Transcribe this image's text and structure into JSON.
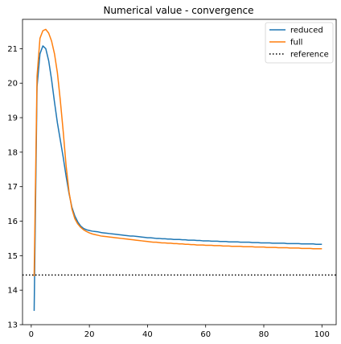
{
  "chart_data": {
    "type": "line",
    "title": "Numerical value - convergence",
    "xlabel": "",
    "ylabel": "",
    "xlim": [
      -3,
      104.9
    ],
    "ylim": [
      13,
      21.85
    ],
    "x_ticks": [
      0,
      20,
      40,
      60,
      80,
      100
    ],
    "y_ticks": [
      13,
      14,
      15,
      16,
      17,
      18,
      19,
      20,
      21
    ],
    "grid": false,
    "legend_position": "top-right",
    "x": [
      1,
      2,
      3,
      4,
      5,
      6,
      7,
      8,
      9,
      10,
      11,
      12,
      13,
      14,
      15,
      16,
      17,
      18,
      19,
      20,
      21,
      22,
      23,
      24,
      25,
      26,
      27,
      28,
      29,
      30,
      31,
      32,
      33,
      34,
      35,
      36,
      37,
      38,
      39,
      40,
      41,
      42,
      43,
      44,
      45,
      46,
      47,
      48,
      49,
      50,
      51,
      52,
      53,
      54,
      55,
      56,
      57,
      58,
      59,
      60,
      61,
      62,
      63,
      64,
      65,
      66,
      67,
      68,
      69,
      70,
      71,
      72,
      73,
      74,
      75,
      76,
      77,
      78,
      79,
      80,
      81,
      82,
      83,
      84,
      85,
      86,
      87,
      88,
      89,
      90,
      91,
      92,
      93,
      94,
      95,
      96,
      97,
      98,
      99,
      100
    ],
    "series": [
      {
        "name": "reduced",
        "color": "#1f77b4",
        "style": "solid",
        "values": [
          13.4,
          19.9,
          20.85,
          21.08,
          21.0,
          20.65,
          20.1,
          19.45,
          18.85,
          18.35,
          17.85,
          17.3,
          16.8,
          16.4,
          16.15,
          15.98,
          15.86,
          15.79,
          15.75,
          15.73,
          15.71,
          15.7,
          15.69,
          15.67,
          15.66,
          15.65,
          15.64,
          15.63,
          15.62,
          15.61,
          15.6,
          15.59,
          15.58,
          15.57,
          15.57,
          15.56,
          15.55,
          15.54,
          15.53,
          15.52,
          15.52,
          15.51,
          15.5,
          15.5,
          15.49,
          15.49,
          15.48,
          15.48,
          15.47,
          15.47,
          15.47,
          15.46,
          15.46,
          15.45,
          15.45,
          15.45,
          15.44,
          15.44,
          15.43,
          15.43,
          15.43,
          15.42,
          15.42,
          15.42,
          15.41,
          15.41,
          15.41,
          15.4,
          15.4,
          15.4,
          15.4,
          15.39,
          15.39,
          15.39,
          15.39,
          15.38,
          15.38,
          15.38,
          15.37,
          15.37,
          15.37,
          15.37,
          15.36,
          15.36,
          15.36,
          15.36,
          15.36,
          15.35,
          15.35,
          15.35,
          15.35,
          15.35,
          15.34,
          15.34,
          15.34,
          15.34,
          15.34,
          15.33,
          15.33,
          15.33
        ]
      },
      {
        "name": "full",
        "color": "#ff7f0e",
        "style": "solid",
        "values": [
          14.4,
          20.2,
          21.3,
          21.52,
          21.56,
          21.45,
          21.22,
          20.85,
          20.3,
          19.5,
          18.6,
          17.6,
          16.85,
          16.35,
          16.07,
          15.92,
          15.82,
          15.75,
          15.7,
          15.66,
          15.63,
          15.61,
          15.59,
          15.57,
          15.56,
          15.55,
          15.54,
          15.53,
          15.52,
          15.51,
          15.5,
          15.49,
          15.48,
          15.47,
          15.46,
          15.45,
          15.44,
          15.43,
          15.42,
          15.41,
          15.4,
          15.39,
          15.39,
          15.38,
          15.37,
          15.37,
          15.36,
          15.36,
          15.35,
          15.35,
          15.34,
          15.34,
          15.33,
          15.33,
          15.32,
          15.32,
          15.31,
          15.31,
          15.31,
          15.3,
          15.3,
          15.3,
          15.29,
          15.29,
          15.29,
          15.28,
          15.28,
          15.28,
          15.27,
          15.27,
          15.27,
          15.27,
          15.26,
          15.26,
          15.26,
          15.26,
          15.25,
          15.25,
          15.25,
          15.25,
          15.24,
          15.24,
          15.24,
          15.24,
          15.23,
          15.23,
          15.23,
          15.23,
          15.22,
          15.22,
          15.22,
          15.22,
          15.21,
          15.21,
          15.21,
          15.21,
          15.2,
          15.2,
          15.2,
          15.2
        ]
      }
    ],
    "reference": {
      "name": "reference",
      "value": 14.44,
      "color": "#000000",
      "style": "dotted"
    }
  }
}
